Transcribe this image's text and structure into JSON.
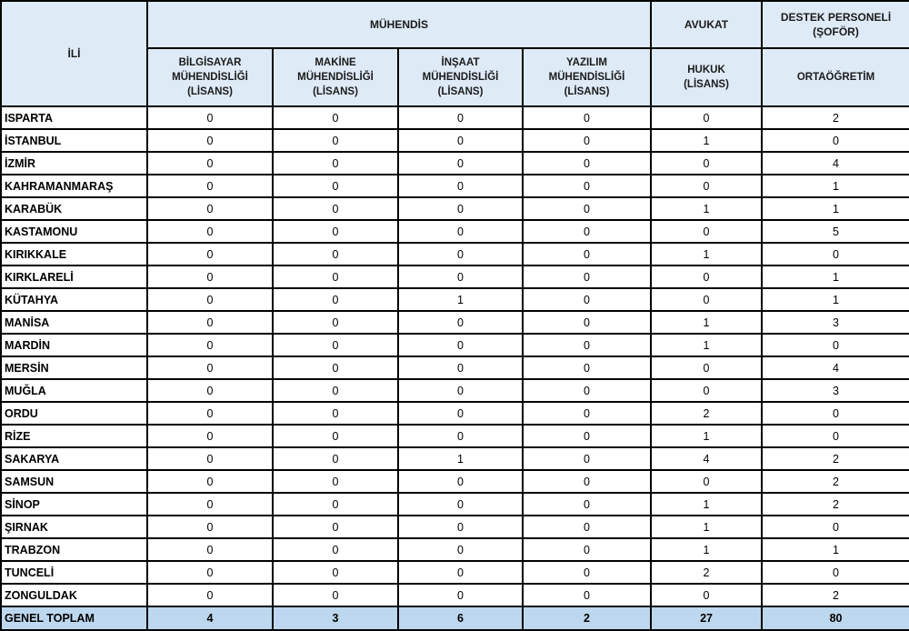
{
  "table": {
    "corner_header": "İLİ",
    "group_headers": [
      {
        "label": "MÜHENDİS",
        "colspan": 4
      },
      {
        "label": "AVUKAT",
        "colspan": 1
      },
      {
        "label": "DESTEK PERSONELİ\n(ŞOFÖR)",
        "colspan": 1
      }
    ],
    "sub_headers": [
      "BİLGİSAYAR\nMÜHENDİSLİĞİ\n(LİSANS)",
      "MAKİNE\nMÜHENDİSLİĞİ\n(LİSANS)",
      "İNŞAAT\nMÜHENDİSLİĞİ\n(LİSANS)",
      "YAZILIM\nMÜHENDİSLİĞİ\n(LİSANS)",
      "HUKUK\n(LİSANS)",
      "ORTAÖĞRETİM"
    ],
    "rows": [
      {
        "province": "ISPARTA",
        "values": [
          0,
          0,
          0,
          0,
          0,
          2
        ]
      },
      {
        "province": "İSTANBUL",
        "values": [
          0,
          0,
          0,
          0,
          1,
          0
        ]
      },
      {
        "province": "İZMİR",
        "values": [
          0,
          0,
          0,
          0,
          0,
          4
        ]
      },
      {
        "province": "KAHRAMANMARAŞ",
        "values": [
          0,
          0,
          0,
          0,
          0,
          1
        ]
      },
      {
        "province": "KARABÜK",
        "values": [
          0,
          0,
          0,
          0,
          1,
          1
        ]
      },
      {
        "province": "KASTAMONU",
        "values": [
          0,
          0,
          0,
          0,
          0,
          5
        ]
      },
      {
        "province": "KIRIKKALE",
        "values": [
          0,
          0,
          0,
          0,
          1,
          0
        ]
      },
      {
        "province": "KIRKLARELİ",
        "values": [
          0,
          0,
          0,
          0,
          0,
          1
        ]
      },
      {
        "province": "KÜTAHYA",
        "values": [
          0,
          0,
          1,
          0,
          0,
          1
        ]
      },
      {
        "province": "MANİSA",
        "values": [
          0,
          0,
          0,
          0,
          1,
          3
        ]
      },
      {
        "province": "MARDİN",
        "values": [
          0,
          0,
          0,
          0,
          1,
          0
        ]
      },
      {
        "province": "MERSİN",
        "values": [
          0,
          0,
          0,
          0,
          0,
          4
        ]
      },
      {
        "province": "MUĞLA",
        "values": [
          0,
          0,
          0,
          0,
          0,
          3
        ]
      },
      {
        "province": "ORDU",
        "values": [
          0,
          0,
          0,
          0,
          2,
          0
        ]
      },
      {
        "province": "RİZE",
        "values": [
          0,
          0,
          0,
          0,
          1,
          0
        ]
      },
      {
        "province": "SAKARYA",
        "values": [
          0,
          0,
          1,
          0,
          4,
          2
        ]
      },
      {
        "province": "SAMSUN",
        "values": [
          0,
          0,
          0,
          0,
          0,
          2
        ]
      },
      {
        "province": "SİNOP",
        "values": [
          0,
          0,
          0,
          0,
          1,
          2
        ]
      },
      {
        "province": "ŞIRNAK",
        "values": [
          0,
          0,
          0,
          0,
          1,
          0
        ]
      },
      {
        "province": "TRABZON",
        "values": [
          0,
          0,
          0,
          0,
          1,
          1
        ]
      },
      {
        "province": "TUNCELİ",
        "values": [
          0,
          0,
          0,
          0,
          2,
          0
        ]
      },
      {
        "province": "ZONGULDAK",
        "values": [
          0,
          0,
          0,
          0,
          0,
          2
        ]
      }
    ],
    "total": {
      "label": "GENEL TOPLAM",
      "values": [
        4,
        3,
        6,
        2,
        27,
        80
      ]
    }
  },
  "colors": {
    "header_bg": "#DEEAF6",
    "total_row_bg": "#BDD7EE",
    "border": "#000000",
    "text": "#1b1b1b"
  }
}
